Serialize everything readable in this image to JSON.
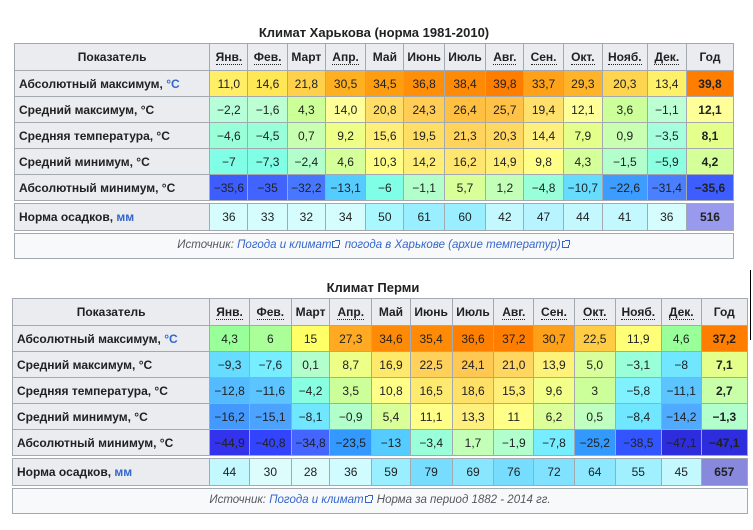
{
  "tables": [
    {
      "caption": "Климат Харькова (норма 1981-2010)",
      "header_label": "Показатель",
      "months": [
        "Янв.",
        "Фев.",
        "Март",
        "Апр.",
        "Май",
        "Июнь",
        "Июль",
        "Авг.",
        "Сен.",
        "Окт.",
        "Нояб.",
        "Дек."
      ],
      "year_label": "Год",
      "rows": [
        {
          "label": "Абсолютный максимум,",
          "unit": "°C",
          "values": [
            "11,0",
            "14,6",
            "21,8",
            "30,5",
            "34,5",
            "36,8",
            "38,4",
            "39,8",
            "33,7",
            "29,3",
            "20,3",
            "13,4",
            "39,8"
          ],
          "colors": [
            "#ffee66",
            "#ffe755",
            "#ffd14a",
            "#ffb020",
            "#ff9d10",
            "#ff8f08",
            "#ff8a05",
            "#ff7e00",
            "#ffa21a",
            "#ffb329",
            "#ffd54f",
            "#fff06a",
            "#ff7e00"
          ]
        },
        {
          "label": "Средний максимум, °C",
          "unit": "",
          "values": [
            "−2,2",
            "−1,6",
            "4,3",
            "14,0",
            "20,8",
            "24,3",
            "26,4",
            "25,7",
            "19,4",
            "12,1",
            "3,6",
            "−1,1",
            "12,1"
          ],
          "colors": [
            "#b6ffd8",
            "#bbffd2",
            "#cdff99",
            "#ffff99",
            "#ffdd66",
            "#ffcc55",
            "#ffbf40",
            "#ffc247",
            "#ffe06a",
            "#ffff99",
            "#ccff99",
            "#bbffd2",
            "#ffff99"
          ]
        },
        {
          "label": "Средняя температура, °C",
          "unit": "",
          "values": [
            "−4,6",
            "−4,5",
            "0,7",
            "9,2",
            "15,6",
            "19,5",
            "21,3",
            "20,3",
            "14,4",
            "7,9",
            "0,9",
            "−3,5",
            "8,1"
          ],
          "colors": [
            "#99ffd8",
            "#99ffd8",
            "#c8ffb0",
            "#eeff88",
            "#ffee77",
            "#ffde66",
            "#ffd35c",
            "#ffd862",
            "#fff07e",
            "#e4ff8a",
            "#c8ffb0",
            "#a5ffdd",
            "#e4ff8a"
          ]
        },
        {
          "label": "Средний минимум, °C",
          "unit": "",
          "values": [
            "−7",
            "−7,3",
            "−2,4",
            "4,6",
            "10,3",
            "14,2",
            "16,2",
            "14,9",
            "9,8",
            "4,3",
            "−1,5",
            "−5,9",
            "4,2"
          ],
          "colors": [
            "#80ffe6",
            "#80ffe6",
            "#b3ffcc",
            "#d5ff99",
            "#ffff88",
            "#ffee77",
            "#ffe66e",
            "#ffee77",
            "#ffff88",
            "#d5ff99",
            "#b3ffcc",
            "#8cffe0",
            "#d5ff99"
          ]
        },
        {
          "label": "Абсолютный минимум, °C",
          "unit": "",
          "values": [
            "−35,6",
            "−35",
            "−32,2",
            "−13,1",
            "−6",
            "−1,1",
            "5,7",
            "1,2",
            "−4,8",
            "−10,7",
            "−22,6",
            "−31,4",
            "−35,6"
          ],
          "colors": [
            "#3d5dff",
            "#4164ff",
            "#4877ff",
            "#55ccff",
            "#80ffe6",
            "#b3ffcc",
            "#d9ff99",
            "#c4ffb8",
            "#99ffd8",
            "#66ddff",
            "#3d9cff",
            "#4a80ff",
            "#3d5dff"
          ]
        }
      ],
      "precip": {
        "label": "Норма осадков,",
        "unit": "мм",
        "values": [
          "36",
          "33",
          "32",
          "34",
          "50",
          "61",
          "60",
          "42",
          "47",
          "44",
          "41",
          "36",
          "516"
        ],
        "colors": [
          "#d5fdfd",
          "#d5fdfd",
          "#d5fdfd",
          "#d5fdfd",
          "#aaf8ff",
          "#99eeff",
          "#99eeff",
          "#c4f8ff",
          "#b8f4ff",
          "#c4f8ff",
          "#c4f8ff",
          "#d5fdfd",
          "#9999ee"
        ]
      },
      "source": {
        "prefix": "Источник:",
        "link1": "Погода и климат",
        "link2": "погода в Харькове (архие температур)",
        "middle": "",
        "suffix": ""
      }
    },
    {
      "caption": "Климат Перми",
      "header_label": "Показатель",
      "months": [
        "Янв.",
        "Фев.",
        "Март",
        "Апр.",
        "Май",
        "Июнь",
        "Июль",
        "Авг.",
        "Сен.",
        "Окт.",
        "Нояб.",
        "Дек."
      ],
      "year_label": "Год",
      "rows": [
        {
          "label": "Абсолютный максимум,",
          "unit": "°C",
          "values": [
            "4,3",
            "6",
            "15",
            "27,3",
            "34,6",
            "35,4",
            "36,6",
            "37,2",
            "30,7",
            "22,5",
            "11,9",
            "4,6",
            "37,2"
          ],
          "colors": [
            "#99ff99",
            "#aaff99",
            "#ffff66",
            "#ffaa22",
            "#ff8a05",
            "#ff8a05",
            "#ff8000",
            "#ff7e00",
            "#ffa01a",
            "#ffcc44",
            "#ffff77",
            "#99ff99",
            "#ff7e00"
          ]
        },
        {
          "label": "Средний максимум, °C",
          "unit": "",
          "values": [
            "−9,3",
            "−7,6",
            "0,1",
            "8,7",
            "16,9",
            "22,5",
            "24,1",
            "21,0",
            "13,9",
            "5,0",
            "−3,1",
            "−8",
            "7,1"
          ],
          "colors": [
            "#66ddff",
            "#77eeff",
            "#b3ffcc",
            "#eeff88",
            "#ffe96b",
            "#ffd05a",
            "#ffc852",
            "#ffd660",
            "#fff27a",
            "#d8ff99",
            "#99ffd8",
            "#70e6ff",
            "#e4ff8a"
          ]
        },
        {
          "label": "Средняя температура, °C",
          "unit": "",
          "values": [
            "−12,8",
            "−11,6",
            "−4,2",
            "3,5",
            "10,8",
            "16,5",
            "18,6",
            "15,3",
            "9,6",
            "3",
            "−5,8",
            "−11,1",
            "2,7"
          ],
          "colors": [
            "#55bbff",
            "#5cc4ff",
            "#88ffe0",
            "#ccff99",
            "#ffff88",
            "#ffea70",
            "#ffe066",
            "#ffee77",
            "#f2ff88",
            "#ccff99",
            "#80f2ff",
            "#5cc4ff",
            "#c8ffa8"
          ]
        },
        {
          "label": "Средний минимум, °C",
          "unit": "",
          "values": [
            "−16,2",
            "−15,1",
            "−8,1",
            "−0,9",
            "5,4",
            "11,1",
            "13,3",
            "11",
            "6,2",
            "0,5",
            "−8,4",
            "−14,2",
            "−1,3"
          ],
          "colors": [
            "#4499ff",
            "#4ca2ff",
            "#70e6ff",
            "#b3ffcc",
            "#d9ff99",
            "#ffff88",
            "#fff07e",
            "#ffff88",
            "#dcff99",
            "#bfffc0",
            "#70e6ff",
            "#50aaff",
            "#b3ffcc"
          ]
        },
        {
          "label": "Абсолютный минимум, °C",
          "unit": "",
          "values": [
            "−44,9",
            "−40,8",
            "−34,8",
            "−23,5",
            "−13",
            "−3,4",
            "1,7",
            "−1,9",
            "−7,8",
            "−25,2",
            "−38,5",
            "−47,1",
            "−47,1"
          ],
          "colors": [
            "#3333ee",
            "#3344ff",
            "#4466ff",
            "#3399ff",
            "#55ccff",
            "#99ffd8",
            "#c4ffb8",
            "#b0ffcc",
            "#77eeff",
            "#3399ff",
            "#3355ff",
            "#2d2ddd",
            "#2d2ddd"
          ]
        }
      ],
      "precip": {
        "label": "Норма осадков,",
        "unit": "мм",
        "values": [
          "44",
          "30",
          "28",
          "36",
          "59",
          "79",
          "69",
          "76",
          "72",
          "64",
          "55",
          "45",
          "657"
        ],
        "colors": [
          "#c4f8ff",
          "#ddfdfd",
          "#ddfdfd",
          "#d0fbff",
          "#99eeff",
          "#77ddff",
          "#88e6ff",
          "#77ddff",
          "#80e2ff",
          "#8ce8ff",
          "#a0f0ff",
          "#c4f8ff",
          "#8888dd"
        ]
      },
      "source": {
        "prefix": "Источник:",
        "link1": "Погода и климат",
        "link2": "",
        "middle": "Норма за период 1882 - 2014 гг.",
        "suffix": ""
      }
    }
  ]
}
